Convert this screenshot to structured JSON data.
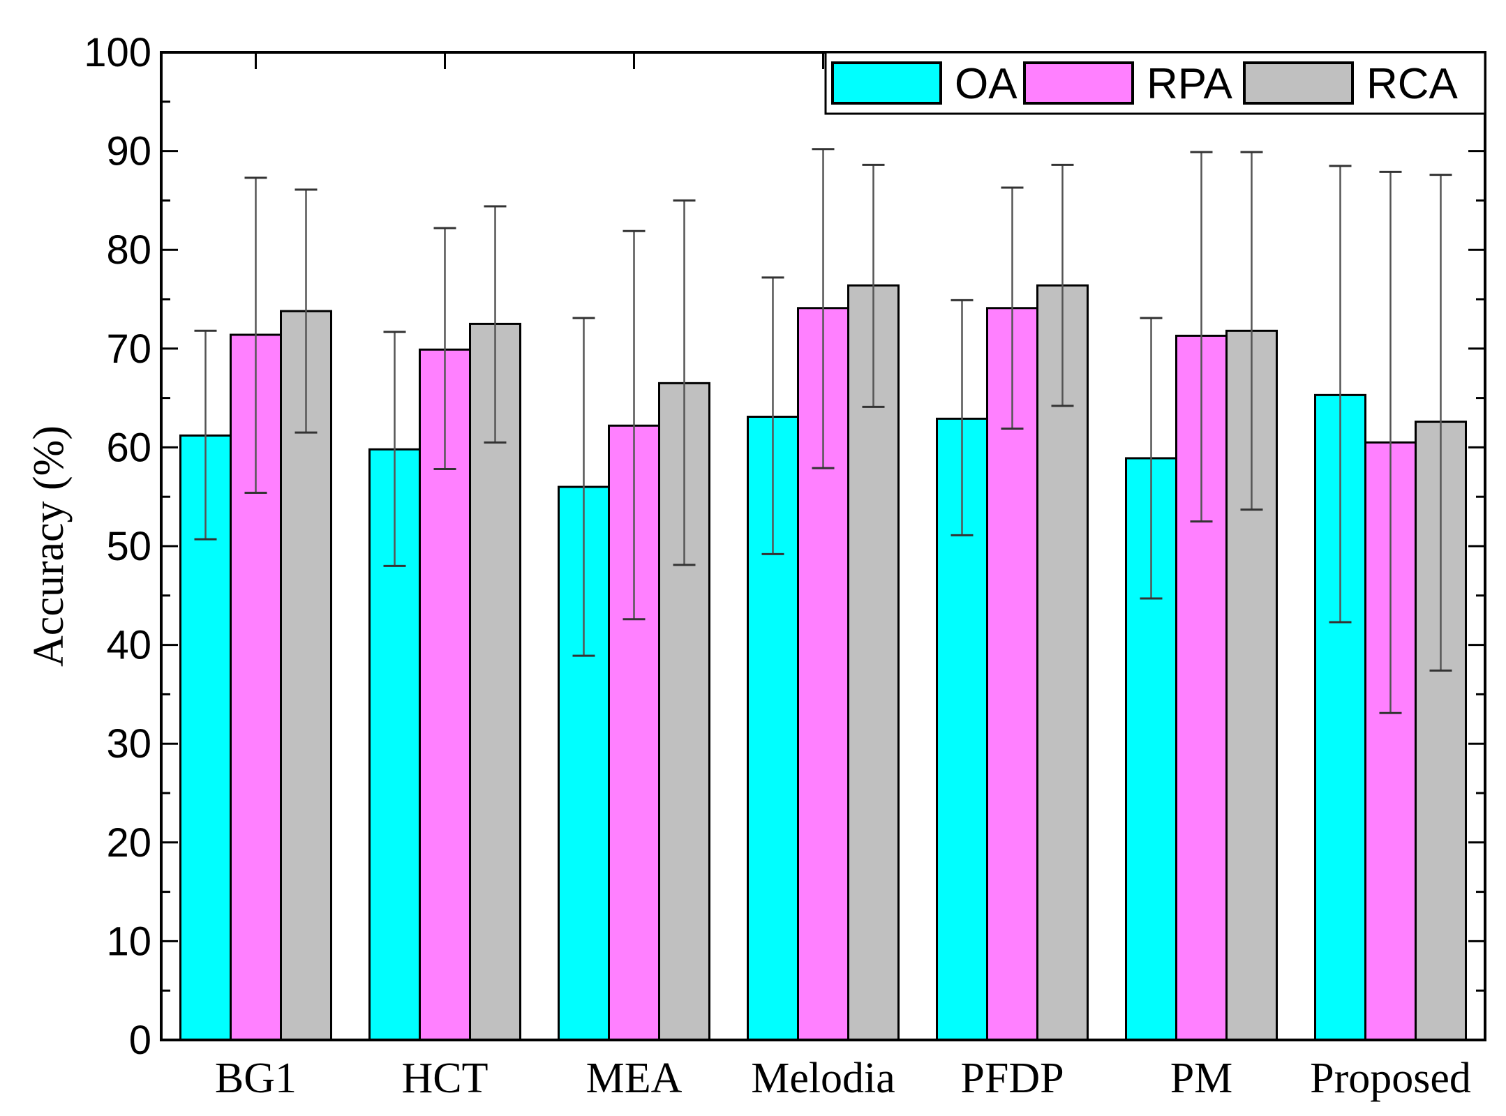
{
  "chart_data": {
    "type": "bar",
    "title": "",
    "xlabel": "",
    "ylabel": "Accuracy (%)",
    "ylim": [
      0,
      100
    ],
    "yticks": [
      "0",
      "10",
      "20",
      "30",
      "40",
      "50",
      "60",
      "70",
      "80",
      "90",
      "100"
    ],
    "categories": [
      "BG1",
      "HCT",
      "MEA",
      "Melodia",
      "PFDP",
      "PM",
      "Proposed"
    ],
    "legend_position": "top-right",
    "grid": false,
    "series": [
      {
        "name": "OA",
        "color": "#00ffff",
        "values": [
          61.2,
          59.8,
          56.0,
          63.1,
          62.9,
          58.9,
          65.3
        ],
        "err_low": [
          50.7,
          48.0,
          38.9,
          49.2,
          51.1,
          44.7,
          42.3
        ],
        "err_high": [
          71.8,
          71.7,
          73.1,
          77.2,
          74.9,
          73.1,
          88.5
        ]
      },
      {
        "name": "RPA",
        "color": "#ff80ff",
        "values": [
          71.4,
          69.9,
          62.2,
          74.1,
          74.1,
          71.3,
          60.5
        ],
        "err_low": [
          55.4,
          57.8,
          42.6,
          57.9,
          61.9,
          52.5,
          33.1
        ],
        "err_high": [
          87.3,
          82.2,
          81.9,
          90.2,
          86.3,
          89.9,
          87.9
        ]
      },
      {
        "name": "RCA",
        "color": "#c0c0c0",
        "values": [
          73.8,
          72.5,
          66.5,
          76.4,
          76.4,
          71.8,
          62.6
        ],
        "err_low": [
          61.5,
          60.5,
          48.1,
          64.1,
          64.2,
          53.7,
          37.4
        ],
        "err_high": [
          86.1,
          84.4,
          85.0,
          88.6,
          88.6,
          89.9,
          87.6
        ]
      }
    ]
  }
}
